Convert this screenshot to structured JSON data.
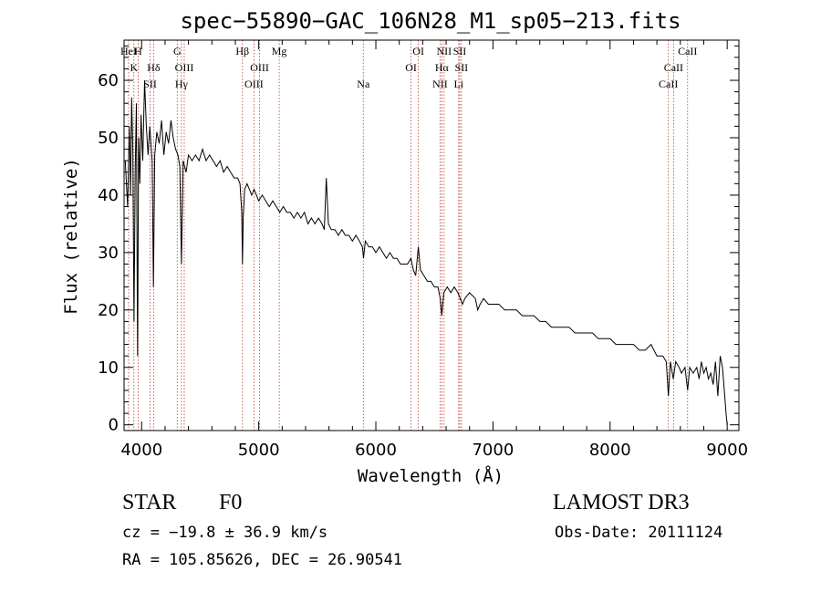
{
  "chart_data": {
    "type": "line",
    "title": "spec−55890−GAC_106N28_M1_sp05−213.fits",
    "xlabel": "Wavelength (Å)",
    "ylabel": "Flux (relative)",
    "xlim": [
      3850,
      9100
    ],
    "ylim": [
      -1,
      67
    ],
    "xticks": [
      4000,
      5000,
      6000,
      7000,
      8000,
      9000
    ],
    "yticks": [
      0,
      10,
      20,
      30,
      40,
      50,
      60
    ],
    "grid": false,
    "series": [
      {
        "name": "spectrum",
        "points": [
          [
            3860,
            46
          ],
          [
            3880,
            38
          ],
          [
            3895,
            52
          ],
          [
            3905,
            40
          ],
          [
            3915,
            57
          ],
          [
            3925,
            48
          ],
          [
            3935,
            18
          ],
          [
            3945,
            44
          ],
          [
            3955,
            56
          ],
          [
            3965,
            12
          ],
          [
            3975,
            50
          ],
          [
            3985,
            42
          ],
          [
            3995,
            54
          ],
          [
            4010,
            46
          ],
          [
            4025,
            60
          ],
          [
            4040,
            52
          ],
          [
            4055,
            47
          ],
          [
            4070,
            52
          ],
          [
            4090,
            46
          ],
          [
            4101,
            24
          ],
          [
            4112,
            47
          ],
          [
            4130,
            51
          ],
          [
            4150,
            49
          ],
          [
            4170,
            53
          ],
          [
            4190,
            47
          ],
          [
            4210,
            51
          ],
          [
            4230,
            49
          ],
          [
            4250,
            53
          ],
          [
            4270,
            50
          ],
          [
            4290,
            48
          ],
          [
            4310,
            47
          ],
          [
            4326,
            45
          ],
          [
            4340,
            28
          ],
          [
            4355,
            46
          ],
          [
            4380,
            44
          ],
          [
            4400,
            47
          ],
          [
            4430,
            46
          ],
          [
            4460,
            47
          ],
          [
            4490,
            46
          ],
          [
            4520,
            48
          ],
          [
            4550,
            46
          ],
          [
            4580,
            47
          ],
          [
            4610,
            46
          ],
          [
            4640,
            45
          ],
          [
            4670,
            46
          ],
          [
            4700,
            44
          ],
          [
            4730,
            45
          ],
          [
            4760,
            44
          ],
          [
            4790,
            43
          ],
          [
            4820,
            43
          ],
          [
            4840,
            42
          ],
          [
            4855,
            37
          ],
          [
            4861,
            28
          ],
          [
            4867,
            36
          ],
          [
            4880,
            41
          ],
          [
            4900,
            42
          ],
          [
            4920,
            41
          ],
          [
            4940,
            40
          ],
          [
            4960,
            41
          ],
          [
            4980,
            40
          ],
          [
            5000,
            39
          ],
          [
            5030,
            40
          ],
          [
            5060,
            39
          ],
          [
            5090,
            38
          ],
          [
            5120,
            39
          ],
          [
            5150,
            38
          ],
          [
            5180,
            37
          ],
          [
            5210,
            38
          ],
          [
            5240,
            37
          ],
          [
            5270,
            37
          ],
          [
            5300,
            36
          ],
          [
            5330,
            37
          ],
          [
            5360,
            36
          ],
          [
            5390,
            37
          ],
          [
            5420,
            35
          ],
          [
            5450,
            36
          ],
          [
            5480,
            35
          ],
          [
            5510,
            36
          ],
          [
            5540,
            35
          ],
          [
            5560,
            34
          ],
          [
            5577,
            43
          ],
          [
            5595,
            35
          ],
          [
            5620,
            34
          ],
          [
            5650,
            34
          ],
          [
            5680,
            33
          ],
          [
            5710,
            34
          ],
          [
            5740,
            33
          ],
          [
            5770,
            33
          ],
          [
            5800,
            32
          ],
          [
            5830,
            33
          ],
          [
            5860,
            32
          ],
          [
            5885,
            31
          ],
          [
            5895,
            29
          ],
          [
            5910,
            32
          ],
          [
            5940,
            31
          ],
          [
            5970,
            31
          ],
          [
            6000,
            30
          ],
          [
            6030,
            31
          ],
          [
            6060,
            30
          ],
          [
            6090,
            29
          ],
          [
            6120,
            30
          ],
          [
            6150,
            29
          ],
          [
            6180,
            29
          ],
          [
            6210,
            28
          ],
          [
            6240,
            28
          ],
          [
            6270,
            28
          ],
          [
            6300,
            29
          ],
          [
            6320,
            27
          ],
          [
            6340,
            26
          ],
          [
            6363,
            31
          ],
          [
            6380,
            27
          ],
          [
            6410,
            26
          ],
          [
            6440,
            25
          ],
          [
            6470,
            25
          ],
          [
            6500,
            24
          ],
          [
            6530,
            24
          ],
          [
            6550,
            22
          ],
          [
            6563,
            19
          ],
          [
            6580,
            23
          ],
          [
            6610,
            24
          ],
          [
            6640,
            23
          ],
          [
            6670,
            24
          ],
          [
            6700,
            23
          ],
          [
            6720,
            22
          ],
          [
            6740,
            21
          ],
          [
            6760,
            22
          ],
          [
            6800,
            23
          ],
          [
            6850,
            22
          ],
          [
            6870,
            20
          ],
          [
            6890,
            21
          ],
          [
            6920,
            22
          ],
          [
            6960,
            21
          ],
          [
            7000,
            21
          ],
          [
            7050,
            21
          ],
          [
            7100,
            20
          ],
          [
            7150,
            20
          ],
          [
            7200,
            20
          ],
          [
            7250,
            19
          ],
          [
            7300,
            19
          ],
          [
            7350,
            19
          ],
          [
            7400,
            18
          ],
          [
            7450,
            18
          ],
          [
            7500,
            17
          ],
          [
            7550,
            17
          ],
          [
            7600,
            17
          ],
          [
            7650,
            17
          ],
          [
            7700,
            16
          ],
          [
            7750,
            16
          ],
          [
            7800,
            16
          ],
          [
            7850,
            16
          ],
          [
            7900,
            15
          ],
          [
            7950,
            15
          ],
          [
            8000,
            15
          ],
          [
            8050,
            14
          ],
          [
            8100,
            14
          ],
          [
            8150,
            14
          ],
          [
            8200,
            14
          ],
          [
            8250,
            13
          ],
          [
            8300,
            13
          ],
          [
            8350,
            14
          ],
          [
            8400,
            12
          ],
          [
            8450,
            12
          ],
          [
            8480,
            11
          ],
          [
            8498,
            5
          ],
          [
            8515,
            11
          ],
          [
            8540,
            8
          ],
          [
            8560,
            11
          ],
          [
            8590,
            10
          ],
          [
            8610,
            9
          ],
          [
            8640,
            10
          ],
          [
            8662,
            6
          ],
          [
            8680,
            10
          ],
          [
            8710,
            9
          ],
          [
            8740,
            10
          ],
          [
            8760,
            8
          ],
          [
            8780,
            11
          ],
          [
            8800,
            9
          ],
          [
            8820,
            10
          ],
          [
            8840,
            8
          ],
          [
            8860,
            9
          ],
          [
            8880,
            7
          ],
          [
            8900,
            11
          ],
          [
            8920,
            5
          ],
          [
            8940,
            12
          ],
          [
            8960,
            10
          ],
          [
            8975,
            6
          ],
          [
            8990,
            2
          ],
          [
            9000,
            0
          ]
        ]
      }
    ],
    "line_markers": [
      {
        "wavelength": 3889,
        "labels": [
          "HeI"
        ]
      },
      {
        "wavelength": 3934,
        "labels": [
          "",
          "K"
        ]
      },
      {
        "wavelength": 3970,
        "labels": [
          "H"
        ]
      },
      {
        "wavelength": 4072,
        "labels": [
          "",
          "",
          "SII"
        ]
      },
      {
        "wavelength": 4102,
        "labels": [
          "",
          "Hδ"
        ]
      },
      {
        "wavelength": 4304,
        "labels": [
          "G"
        ]
      },
      {
        "wavelength": 4340,
        "labels": [
          "",
          "",
          "Hγ"
        ]
      },
      {
        "wavelength": 4364,
        "labels": [
          "",
          "OIII"
        ]
      },
      {
        "wavelength": 4861,
        "labels": [
          "Hβ"
        ]
      },
      {
        "wavelength": 4959,
        "labels": [
          "",
          "",
          "OIII"
        ]
      },
      {
        "wavelength": 5007,
        "labels": [
          "",
          "OIII"
        ]
      },
      {
        "wavelength": 5175,
        "labels": [
          "Mg"
        ]
      },
      {
        "wavelength": 5893,
        "labels": [
          "",
          "",
          "Na"
        ]
      },
      {
        "wavelength": 6300,
        "labels": [
          "",
          "OI"
        ]
      },
      {
        "wavelength": 6363,
        "labels": [
          "OI"
        ]
      },
      {
        "wavelength": 6548,
        "labels": [
          "",
          "",
          "NII"
        ]
      },
      {
        "wavelength": 6563,
        "labels": [
          "",
          "Hα"
        ]
      },
      {
        "wavelength": 6583,
        "labels": [
          "NII"
        ]
      },
      {
        "wavelength": 6707,
        "labels": [
          "",
          "",
          "Li"
        ]
      },
      {
        "wavelength": 6716,
        "labels": [
          "SII"
        ]
      },
      {
        "wavelength": 6731,
        "labels": [
          "",
          "SII"
        ]
      },
      {
        "wavelength": 8498,
        "labels": [
          "",
          "",
          "CaII"
        ]
      },
      {
        "wavelength": 8542,
        "labels": [
          "",
          "CaII"
        ]
      },
      {
        "wavelength": 8662,
        "labels": [
          "CaII"
        ]
      }
    ],
    "colors": {
      "axes": "#000000",
      "series": "#000000",
      "markers": "#c0392b"
    }
  },
  "info": {
    "class": "STAR",
    "subclass": "F0",
    "survey": "LAMOST DR3",
    "cz": "cz = −19.8 ± 36.9 km/s",
    "obs_date": "Obs-Date: 20111124",
    "coords": "RA = 105.85626, DEC =  26.90541"
  }
}
